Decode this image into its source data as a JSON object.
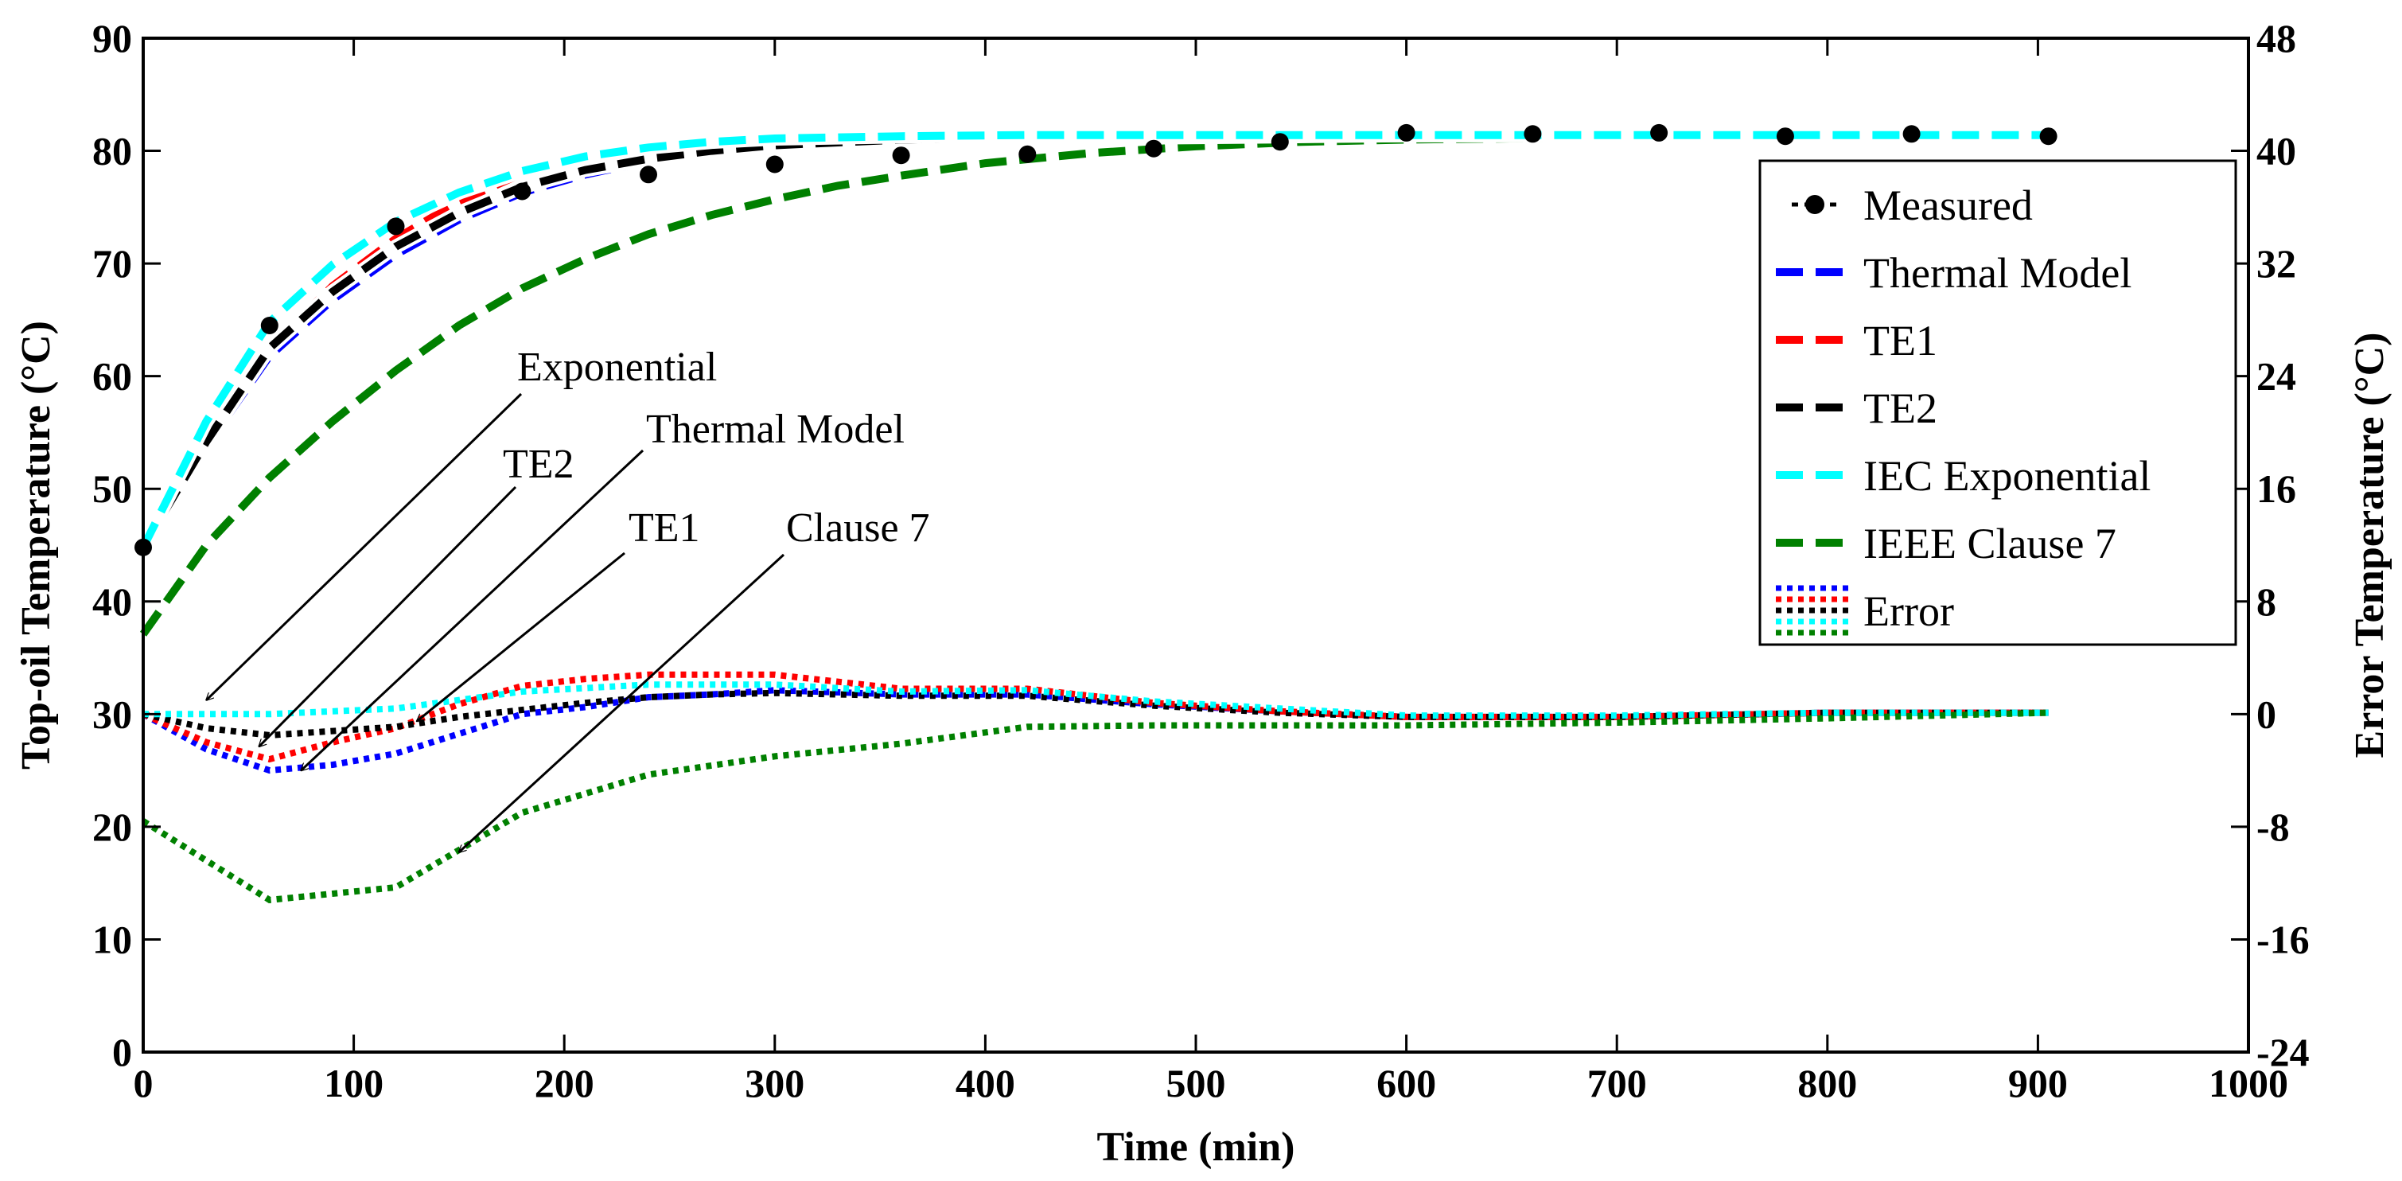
{
  "chart_data": {
    "type": "line",
    "xlabel": "Time (min)",
    "ylabel": "Top-oil Temperature (°C)",
    "y2label": "Error Temperature (°C)",
    "xlim": [
      0,
      1000
    ],
    "ylim": [
      0,
      90
    ],
    "y2lim": [
      -24,
      48
    ],
    "xticks": [
      "0",
      "100",
      "200",
      "300",
      "400",
      "500",
      "600",
      "700",
      "800",
      "900",
      "1000"
    ],
    "yticks": [
      "0",
      "10",
      "20",
      "30",
      "40",
      "50",
      "60",
      "70",
      "80",
      "90"
    ],
    "y2ticks": [
      "-24",
      "-16",
      "-8",
      "0",
      "8",
      "16",
      "24",
      "32",
      "40",
      "48"
    ],
    "grid": false,
    "legend_position": "right",
    "legend": [
      "Measured",
      "Thermal Model",
      "TE1",
      "TE2",
      "IEC Exponential",
      "IEEE Clause 7",
      "Error"
    ],
    "measured": {
      "name": "Measured",
      "color": "#000000",
      "x": [
        0,
        60,
        120,
        180,
        240,
        300,
        360,
        420,
        480,
        540,
        600,
        660,
        720,
        780,
        840,
        905
      ],
      "y": [
        44.8,
        64.5,
        73.3,
        76.4,
        77.9,
        78.8,
        79.6,
        79.7,
        80.2,
        80.8,
        81.6,
        81.5,
        81.6,
        81.3,
        81.5,
        81.3
      ]
    },
    "temperature_series": [
      {
        "name": "Thermal Model",
        "color": "#0000ff",
        "x": [
          0,
          30,
          60,
          90,
          120,
          150,
          180,
          210,
          240,
          270,
          300,
          360,
          420,
          480,
          540,
          600,
          700,
          800,
          905
        ],
        "y": [
          44.8,
          53.8,
          61.8,
          66.8,
          70.8,
          73.9,
          76.3,
          77.9,
          79.1,
          79.9,
          80.4,
          80.9,
          81.1,
          81.2,
          81.3,
          81.4,
          81.4,
          81.4,
          81.4
        ]
      },
      {
        "name": "TE1",
        "color": "#ff0000",
        "x": [
          0,
          30,
          60,
          90,
          120,
          150,
          180,
          210,
          240,
          270,
          300,
          360,
          420,
          480,
          540,
          600,
          700,
          800,
          905
        ],
        "y": [
          44.8,
          54.5,
          62.5,
          68.0,
          72.2,
          75.5,
          78.0,
          79.6,
          80.5,
          81.0,
          81.2,
          81.4,
          81.5,
          81.5,
          81.5,
          81.5,
          81.5,
          81.5,
          81.5
        ]
      },
      {
        "name": "TE2",
        "color": "#000000",
        "x": [
          0,
          30,
          60,
          90,
          120,
          150,
          180,
          210,
          240,
          270,
          300,
          360,
          420,
          480,
          540,
          600,
          700,
          800,
          905
        ],
        "y": [
          44.8,
          54.2,
          62.5,
          67.5,
          71.5,
          74.5,
          76.8,
          78.3,
          79.3,
          80.0,
          80.5,
          81.0,
          81.2,
          81.3,
          81.4,
          81.4,
          81.4,
          81.4,
          81.4
        ]
      },
      {
        "name": "IEC Exponential",
        "color": "#00ffff",
        "x": [
          0,
          30,
          60,
          90,
          120,
          150,
          180,
          210,
          240,
          270,
          300,
          360,
          420,
          480,
          540,
          600,
          700,
          800,
          905
        ],
        "y": [
          44.8,
          56.0,
          64.8,
          69.9,
          73.7,
          76.3,
          78.2,
          79.5,
          80.3,
          80.8,
          81.1,
          81.3,
          81.4,
          81.4,
          81.4,
          81.4,
          81.4,
          81.4,
          81.4
        ]
      },
      {
        "name": "IEEE Clause 7",
        "color": "#008000",
        "x": [
          0,
          30,
          60,
          90,
          120,
          150,
          180,
          210,
          240,
          270,
          300,
          330,
          360,
          400,
          450,
          500,
          550,
          600,
          700,
          800,
          905
        ],
        "y": [
          37.1,
          45.0,
          51.0,
          56.0,
          60.5,
          64.5,
          67.8,
          70.4,
          72.6,
          74.3,
          75.7,
          76.9,
          77.8,
          78.9,
          79.8,
          80.4,
          80.8,
          81.0,
          81.2,
          81.3,
          81.4
        ]
      }
    ],
    "error_series": [
      {
        "name": "Thermal Model Error",
        "color": "#0000ff",
        "x": [
          0,
          30,
          60,
          90,
          120,
          150,
          180,
          210,
          240,
          270,
          300,
          360,
          420,
          480,
          540,
          600,
          700,
          800,
          905
        ],
        "y": [
          0,
          -2.5,
          -4.0,
          -3.6,
          -2.8,
          -1.4,
          0.0,
          0.5,
          1.2,
          1.4,
          1.7,
          1.4,
          1.4,
          0.7,
          0.2,
          -0.2,
          -0.2,
          0.1,
          0.1
        ]
      },
      {
        "name": "TE1 Error",
        "color": "#ff0000",
        "x": [
          0,
          30,
          60,
          90,
          120,
          150,
          180,
          210,
          240,
          270,
          300,
          360,
          420,
          480,
          540,
          600,
          700,
          800,
          905
        ],
        "y": [
          0,
          -2.0,
          -3.2,
          -2.0,
          -1.0,
          0.7,
          2.0,
          2.5,
          2.8,
          2.8,
          2.8,
          1.8,
          1.8,
          0.8,
          0.2,
          -0.2,
          -0.2,
          0.1,
          0.1
        ]
      },
      {
        "name": "TE2 Error",
        "color": "#000000",
        "x": [
          0,
          30,
          60,
          90,
          120,
          150,
          180,
          210,
          240,
          270,
          300,
          360,
          420,
          480,
          540,
          600,
          700,
          800,
          905
        ],
        "y": [
          0,
          -1.0,
          -1.5,
          -1.2,
          -0.9,
          -0.2,
          0.3,
          0.8,
          1.2,
          1.4,
          1.5,
          1.3,
          1.3,
          0.6,
          0.1,
          -0.2,
          -0.2,
          0.1,
          0.1
        ]
      },
      {
        "name": "IEC Exponential Error",
        "color": "#00ffff",
        "x": [
          0,
          60,
          120,
          180,
          240,
          300,
          360,
          420,
          480,
          540,
          600,
          700,
          800,
          905
        ],
        "y": [
          0,
          0,
          0.4,
          1.6,
          2.1,
          2.1,
          1.6,
          1.7,
          0.9,
          0.4,
          -0.1,
          -0.1,
          0.1,
          0.1
        ]
      },
      {
        "name": "IEEE Clause 7 Error",
        "color": "#008000",
        "x": [
          0,
          60,
          120,
          180,
          240,
          300,
          360,
          420,
          480,
          540,
          600,
          700,
          800,
          905
        ],
        "y": [
          -7.6,
          -13.2,
          -12.3,
          -7.0,
          -4.3,
          -3.0,
          -2.1,
          -0.9,
          -0.8,
          -0.8,
          -0.8,
          -0.6,
          -0.3,
          0.1
        ]
      }
    ],
    "annotations": [
      {
        "text": "Exponential",
        "target": [
          30,
          1.0
        ]
      },
      {
        "text": "TE2",
        "target": [
          55,
          -2.3
        ]
      },
      {
        "text": "Thermal Model",
        "target": [
          75,
          -4.0
        ]
      },
      {
        "text": "TE1",
        "target": [
          130,
          -0.5
        ]
      },
      {
        "text": "Clause 7",
        "target": [
          150,
          -9.8
        ]
      }
    ]
  }
}
